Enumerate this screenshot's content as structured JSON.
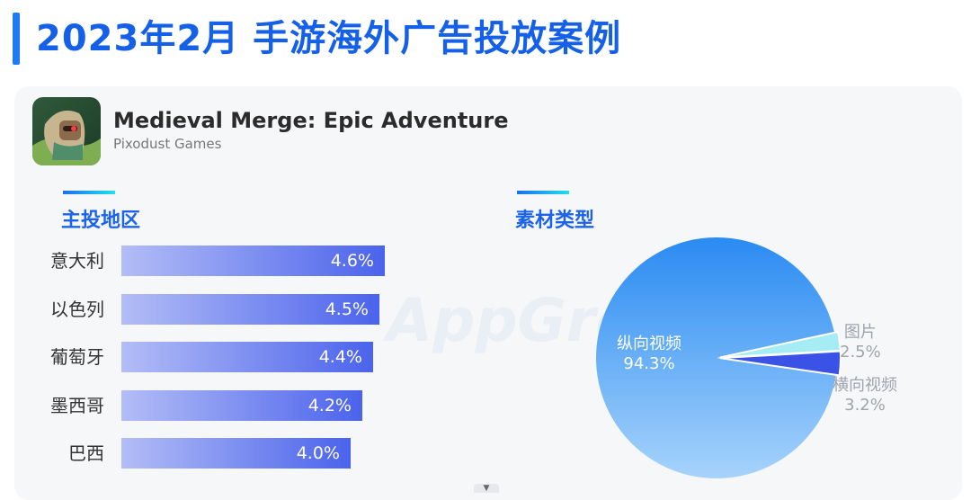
{
  "header": {
    "title": "2023年2月 手游海外广告投放案例"
  },
  "app": {
    "name": "Medieval Merge: Epic Adventure",
    "developer": "Pixodust Games",
    "icon": "game-knight-icon"
  },
  "watermark": "AppGrowing",
  "colors": {
    "accent": "#1560e8",
    "bar_start": "#b3bdf6",
    "bar_end": "#4b63ec",
    "pie_main": "#45a3f5",
    "pie_image": "#a6ecf4",
    "pie_horizontal": "#3a52e6"
  },
  "regions": {
    "title": "主投地区"
  },
  "materials": {
    "title": "素材类型"
  },
  "chart_data": [
    {
      "type": "bar",
      "title": "主投地区",
      "orientation": "horizontal",
      "categories": [
        "意大利",
        "以色列",
        "葡萄牙",
        "墨西哥",
        "巴西"
      ],
      "values": [
        4.6,
        4.5,
        4.4,
        4.2,
        4.0
      ],
      "labels": [
        "4.6%",
        "4.5%",
        "4.4%",
        "4.2%",
        "4.0%"
      ],
      "unit": "%",
      "xlim": [
        0,
        4.6
      ]
    },
    {
      "type": "pie",
      "title": "素材类型",
      "slices": [
        {
          "name": "纵向视频",
          "value": 94.3,
          "label": "94.3%"
        },
        {
          "name": "图片",
          "value": 2.5,
          "label": "2.5%"
        },
        {
          "name": "横向视频",
          "value": 3.2,
          "label": "3.2%"
        }
      ]
    }
  ]
}
